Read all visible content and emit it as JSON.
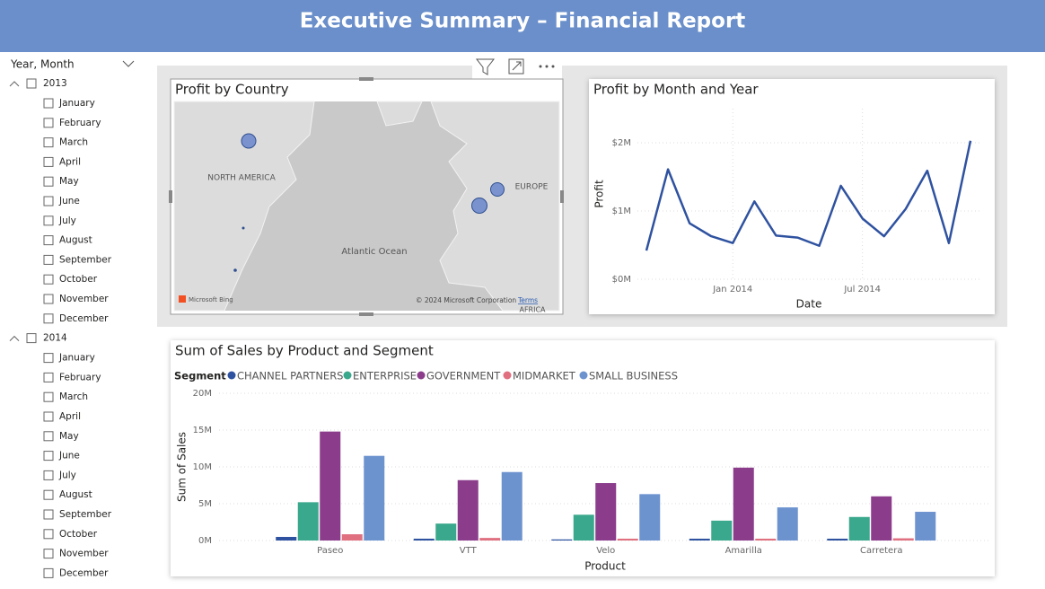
{
  "header": {
    "title": "Executive Summary – Financial Report"
  },
  "slicer": {
    "title": "Year, Month",
    "years": [
      {
        "label": "2013",
        "months": [
          "January",
          "February",
          "March",
          "April",
          "May",
          "June",
          "July",
          "August",
          "September",
          "October",
          "November",
          "December"
        ]
      },
      {
        "label": "2014",
        "months": [
          "January",
          "February",
          "March",
          "April",
          "May",
          "June",
          "July",
          "August",
          "September",
          "October",
          "November",
          "December"
        ]
      }
    ]
  },
  "map": {
    "title": "Profit by Country",
    "labels": [
      "NORTH AMERICA",
      "EUROPE",
      "Atlantic Ocean",
      "AFRICA"
    ],
    "attribution": "Microsoft Bing",
    "copyright": "© 2024 Microsoft Corporation",
    "terms": "Terms"
  },
  "chart_data": [
    {
      "type": "line",
      "title": "Profit by Month and Year",
      "x_label": "Date",
      "y_label": "Profit",
      "x": [
        "2013-09",
        "2013-10",
        "2013-11",
        "2013-12",
        "2014-01",
        "2014-02",
        "2014-03",
        "2014-04",
        "2014-05",
        "2014-06",
        "2014-07",
        "2014-08",
        "2014-09",
        "2014-10",
        "2014-11",
        "2014-12"
      ],
      "values": [
        420000,
        1610000,
        820000,
        630000,
        530000,
        1140000,
        640000,
        610000,
        490000,
        1370000,
        890000,
        630000,
        1030000,
        1590000,
        530000,
        2030000
      ],
      "color": "#2f52a0",
      "xlim": [
        "2013-09",
        "2014-12"
      ],
      "xticks": [
        {
          "value": "2014-01",
          "label": "Jan 2014"
        },
        {
          "value": "2014-07",
          "label": "Jul 2014"
        }
      ],
      "ylim": [
        0,
        2500000
      ],
      "yticks": [
        {
          "value": 0,
          "label": "$0M"
        },
        {
          "value": 1000000,
          "label": "$1M"
        },
        {
          "value": 2000000,
          "label": "$2M"
        }
      ],
      "grid": true
    },
    {
      "type": "bar",
      "title": "Sum of Sales by Product and Segment",
      "x_label": "Product",
      "y_label": "Sum of Sales",
      "legend_title": "Segment",
      "categories": [
        "Paseo",
        "VTT",
        "Velo",
        "Amarilla",
        "Carretera"
      ],
      "series": [
        {
          "name": "CHANNEL PARTNERS",
          "color": "#2f52a0",
          "values": [
            490000,
            250000,
            150000,
            250000,
            250000
          ]
        },
        {
          "name": "ENTERPRISE",
          "color": "#3aa88c",
          "values": [
            5200000,
            2300000,
            3500000,
            2700000,
            3200000
          ]
        },
        {
          "name": "GOVERNMENT",
          "color": "#8b3d8c",
          "values": [
            14800000,
            8200000,
            7800000,
            9900000,
            6000000
          ]
        },
        {
          "name": "MIDMARKET",
          "color": "#e07080",
          "values": [
            850000,
            350000,
            250000,
            250000,
            300000
          ]
        },
        {
          "name": "SMALL BUSINESS",
          "color": "#6d93cf",
          "values": [
            11500000,
            9300000,
            6300000,
            4500000,
            3900000
          ]
        }
      ],
      "ylim": [
        0,
        20000000
      ],
      "yticks": [
        {
          "value": 0,
          "label": "0M"
        },
        {
          "value": 5000000,
          "label": "5M"
        },
        {
          "value": 10000000,
          "label": "10M"
        },
        {
          "value": 15000000,
          "label": "15M"
        },
        {
          "value": 20000000,
          "label": "20M"
        }
      ],
      "grid": true
    }
  ]
}
